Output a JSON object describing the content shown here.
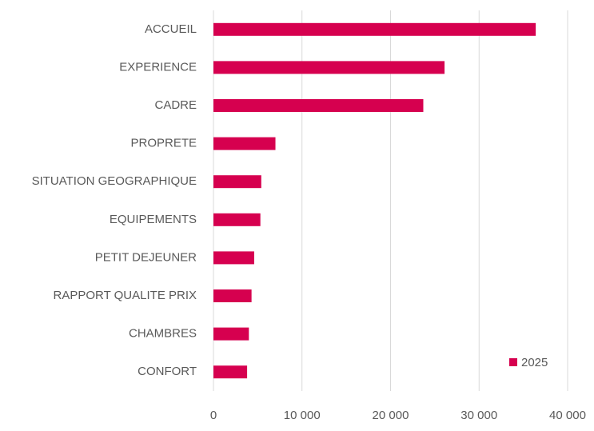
{
  "chart_data": {
    "type": "bar",
    "orientation": "horizontal",
    "categories": [
      "ACCUEIL",
      "EXPERIENCE",
      "CADRE",
      "PROPRETE",
      "SITUATION GEOGRAPHIQUE",
      "EQUIPEMENTS",
      "PETIT DEJEUNER",
      "RAPPORT QUALITE PRIX",
      "CHAMBRES",
      "CONFORT"
    ],
    "series": [
      {
        "name": "2025",
        "color": "#d6004f",
        "values": [
          36400,
          26100,
          23700,
          7000,
          5400,
          5300,
          4600,
          4300,
          4000,
          3800
        ]
      }
    ],
    "xlim": [
      0,
      40000
    ],
    "xticks": [
      0,
      {
        "value": 10000,
        "label": "10 000"
      },
      {
        "value": 20000,
        "label": "20 000"
      },
      {
        "value": 30000,
        "label": "30 000"
      },
      {
        "value": 40000,
        "label": "40 000"
      }
    ],
    "grid": true,
    "legend": "lower right"
  }
}
